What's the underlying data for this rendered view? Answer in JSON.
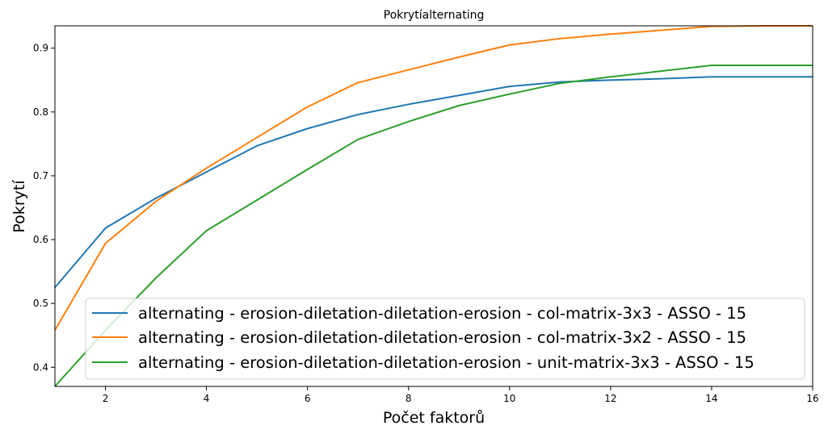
{
  "chart_data": {
    "type": "line",
    "title": "Pokrytíalternating",
    "xlabel": "Počet faktorů",
    "ylabel": "Pokrytí",
    "xlim": [
      1,
      16
    ],
    "ylim": [
      0.37,
      0.935
    ],
    "xticks": [
      2,
      4,
      6,
      8,
      10,
      12,
      14,
      16
    ],
    "yticks": [
      0.4,
      0.5,
      0.6,
      0.7,
      0.8,
      0.9
    ],
    "grid": false,
    "legend_position": "lower-right",
    "x": [
      1,
      2,
      3,
      4,
      5,
      6,
      7,
      8,
      9,
      10,
      11,
      12,
      13,
      14,
      15,
      16
    ],
    "series": [
      {
        "name": "alternating - erosion-diletation-diletation-erosion - col-matrix-3x3 - ASSO - 15",
        "color": "#1f77b4",
        "values": [
          0.525,
          0.618,
          0.665,
          0.706,
          0.747,
          0.774,
          0.796,
          0.812,
          0.826,
          0.84,
          0.847,
          0.85,
          0.852,
          0.855,
          0.855,
          0.855
        ]
      },
      {
        "name": "alternating - erosion-diletation-diletation-erosion - col-matrix-3x2 - ASSO - 15",
        "color": "#ff7f0e",
        "values": [
          0.458,
          0.594,
          0.66,
          0.712,
          0.76,
          0.808,
          0.846,
          0.866,
          0.886,
          0.905,
          0.915,
          0.922,
          0.928,
          0.934,
          0.935,
          0.935
        ]
      },
      {
        "name": "alternating - erosion-diletation-diletation-erosion - unit-matrix-3x3 - ASSO - 15",
        "color": "#2ca02c",
        "values": [
          0.37,
          0.458,
          0.54,
          0.614,
          0.662,
          0.71,
          0.757,
          0.785,
          0.81,
          0.828,
          0.845,
          0.855,
          0.864,
          0.873,
          0.873,
          0.873
        ]
      }
    ]
  }
}
